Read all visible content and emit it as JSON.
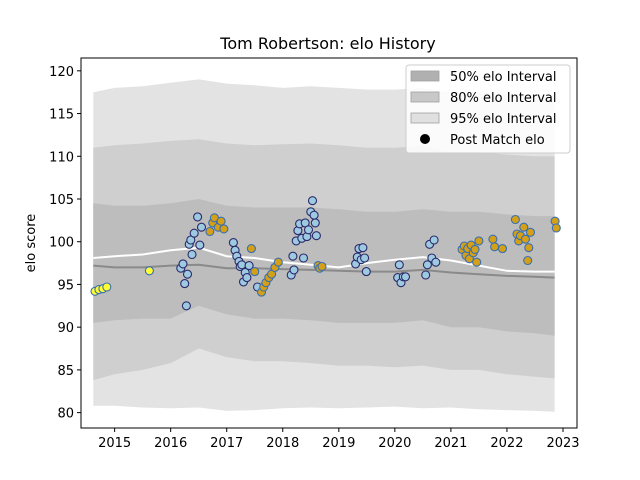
{
  "chart_data": {
    "type": "scatter",
    "title": "Tom Robertson: elo History",
    "xlabel": "",
    "ylabel": "elo score",
    "xlim": [
      2014.4,
      2023.25
    ],
    "ylim": [
      78.2,
      121.5
    ],
    "x_ticks": [
      2015,
      2016,
      2017,
      2018,
      2019,
      2020,
      2021,
      2022,
      2023
    ],
    "y_ticks": [
      80,
      85,
      90,
      95,
      100,
      105,
      110,
      115,
      120
    ],
    "grid": false,
    "legend_position": "top-right",
    "legend": [
      {
        "label": "50% elo Interval",
        "kind": "patch",
        "color": "#b0b0b0"
      },
      {
        "label": "80% elo Interval",
        "kind": "patch",
        "color": "#c8c8c8"
      },
      {
        "label": "95% elo Interval",
        "kind": "patch",
        "color": "#e0e0e0"
      },
      {
        "label": "Post Match elo",
        "kind": "marker",
        "color": "#000000"
      }
    ],
    "colors": {
      "band95": "#e3e3e3",
      "band80": "#cfcfcf",
      "band50": "#bdbdbd",
      "median_line": "#8a8a8a",
      "mean_line": "#ffffff",
      "point_blue_fill": "#9ecae1",
      "point_yellow_fill": "#ffff33",
      "point_gold_fill": "#d4a017",
      "point_edge_dark": "#2a2a6a",
      "point_edge_blue": "#3a6fb0"
    },
    "band_x": [
      2014.62,
      2015,
      2015.5,
      2016,
      2016.5,
      2017,
      2017.5,
      2018,
      2018.5,
      2019,
      2019.5,
      2020,
      2020.5,
      2021,
      2021.5,
      2022,
      2022.5,
      2022.85
    ],
    "band95_upper": [
      117.5,
      118,
      118.2,
      118.6,
      119,
      118.5,
      118.3,
      118,
      118.2,
      118,
      117.8,
      117.8,
      118,
      117.5,
      117.5,
      117.3,
      117.2,
      117
    ],
    "band95_lower": [
      80.8,
      80.8,
      80.6,
      80.5,
      80.6,
      80.2,
      80.3,
      80.5,
      80.6,
      80.5,
      80.6,
      80.7,
      80.5,
      80.6,
      80.4,
      80.3,
      80.2,
      80.1
    ],
    "band80_upper": [
      111,
      111.3,
      111.5,
      111.8,
      112,
      111.5,
      111.3,
      111.4,
      111.5,
      111.3,
      111,
      111,
      111.2,
      110.5,
      110.5,
      110.2,
      110,
      110
    ],
    "band80_lower": [
      83.8,
      84.5,
      85,
      85.8,
      87.5,
      86.5,
      86,
      86,
      85.8,
      85.5,
      85.5,
      85.3,
      85.5,
      85,
      85,
      84.5,
      84.2,
      84
    ],
    "band50_upper": [
      104.5,
      104.2,
      104.2,
      104.5,
      105,
      104.2,
      104,
      104,
      104,
      103.8,
      103.5,
      103.5,
      103.8,
      103.5,
      103.5,
      103.2,
      103,
      103
    ],
    "band50_lower": [
      90.5,
      90.8,
      91,
      91,
      92.5,
      91.5,
      91,
      91,
      90.8,
      90.5,
      90.5,
      90.5,
      90.8,
      90,
      90,
      89.5,
      89.3,
      89
    ],
    "median_line": [
      97.2,
      97,
      97,
      97.2,
      97.3,
      96.9,
      96.9,
      96.8,
      96.7,
      96.6,
      96.5,
      96.5,
      96.7,
      96.4,
      96.2,
      96,
      95.9,
      95.8
    ],
    "mean_line": [
      98.1,
      98.3,
      98.5,
      99,
      99.3,
      98.3,
      98.1,
      97.6,
      97.3,
      97,
      97.5,
      97.9,
      98.2,
      97.8,
      97.2,
      96.6,
      96.5,
      96.5
    ],
    "points": [
      {
        "x": 2014.65,
        "y": 94.2,
        "c": "yellow"
      },
      {
        "x": 2014.72,
        "y": 94.4,
        "c": "yellow"
      },
      {
        "x": 2014.79,
        "y": 94.5,
        "c": "yellow"
      },
      {
        "x": 2014.86,
        "y": 94.7,
        "c": "yellow"
      },
      {
        "x": 2015.62,
        "y": 96.6,
        "c": "yellow"
      },
      {
        "x": 2016.18,
        "y": 96.9,
        "c": "blue"
      },
      {
        "x": 2016.22,
        "y": 97.4,
        "c": "blue"
      },
      {
        "x": 2016.25,
        "y": 95.1,
        "c": "blue"
      },
      {
        "x": 2016.28,
        "y": 92.5,
        "c": "blue"
      },
      {
        "x": 2016.3,
        "y": 96.2,
        "c": "blue"
      },
      {
        "x": 2016.33,
        "y": 99.7,
        "c": "blue"
      },
      {
        "x": 2016.36,
        "y": 100.2,
        "c": "blue"
      },
      {
        "x": 2016.38,
        "y": 98.5,
        "c": "blue"
      },
      {
        "x": 2016.42,
        "y": 101,
        "c": "blue"
      },
      {
        "x": 2016.48,
        "y": 102.9,
        "c": "blue"
      },
      {
        "x": 2016.52,
        "y": 99.6,
        "c": "blue"
      },
      {
        "x": 2016.55,
        "y": 101.7,
        "c": "blue"
      },
      {
        "x": 2016.7,
        "y": 101.2,
        "c": "gold"
      },
      {
        "x": 2016.75,
        "y": 102.2,
        "c": "gold"
      },
      {
        "x": 2016.78,
        "y": 102.8,
        "c": "gold"
      },
      {
        "x": 2016.85,
        "y": 101.7,
        "c": "gold"
      },
      {
        "x": 2016.9,
        "y": 102.4,
        "c": "gold"
      },
      {
        "x": 2016.95,
        "y": 101.5,
        "c": "gold"
      },
      {
        "x": 2017.12,
        "y": 99.9,
        "c": "blue"
      },
      {
        "x": 2017.15,
        "y": 99,
        "c": "blue"
      },
      {
        "x": 2017.18,
        "y": 98.3,
        "c": "blue"
      },
      {
        "x": 2017.22,
        "y": 97.7,
        "c": "blue"
      },
      {
        "x": 2017.24,
        "y": 97.1,
        "c": "blue"
      },
      {
        "x": 2017.27,
        "y": 97.3,
        "c": "blue"
      },
      {
        "x": 2017.3,
        "y": 95.3,
        "c": "blue"
      },
      {
        "x": 2017.33,
        "y": 96.4,
        "c": "blue"
      },
      {
        "x": 2017.36,
        "y": 95.8,
        "c": "blue"
      },
      {
        "x": 2017.4,
        "y": 97.2,
        "c": "blue"
      },
      {
        "x": 2017.44,
        "y": 99.2,
        "c": "gold"
      },
      {
        "x": 2017.5,
        "y": 96.5,
        "c": "gold"
      },
      {
        "x": 2017.55,
        "y": 94.7,
        "c": "blue"
      },
      {
        "x": 2017.62,
        "y": 94.1,
        "c": "gold"
      },
      {
        "x": 2017.66,
        "y": 94.7,
        "c": "gold"
      },
      {
        "x": 2017.7,
        "y": 95.2,
        "c": "gold"
      },
      {
        "x": 2017.75,
        "y": 95.8,
        "c": "gold"
      },
      {
        "x": 2017.8,
        "y": 96.2,
        "c": "gold"
      },
      {
        "x": 2017.86,
        "y": 97,
        "c": "gold"
      },
      {
        "x": 2017.92,
        "y": 97.6,
        "c": "gold"
      },
      {
        "x": 2018.15,
        "y": 96.1,
        "c": "blue"
      },
      {
        "x": 2018.18,
        "y": 98.3,
        "c": "blue"
      },
      {
        "x": 2018.2,
        "y": 96.7,
        "c": "blue"
      },
      {
        "x": 2018.24,
        "y": 100.1,
        "c": "blue"
      },
      {
        "x": 2018.27,
        "y": 101.3,
        "c": "blue"
      },
      {
        "x": 2018.3,
        "y": 102.1,
        "c": "blue"
      },
      {
        "x": 2018.34,
        "y": 100.4,
        "c": "blue"
      },
      {
        "x": 2018.37,
        "y": 98.1,
        "c": "blue"
      },
      {
        "x": 2018.4,
        "y": 102.2,
        "c": "blue"
      },
      {
        "x": 2018.43,
        "y": 100.6,
        "c": "blue"
      },
      {
        "x": 2018.46,
        "y": 101.4,
        "c": "blue"
      },
      {
        "x": 2018.5,
        "y": 103.5,
        "c": "blue"
      },
      {
        "x": 2018.53,
        "y": 104.8,
        "c": "blue"
      },
      {
        "x": 2018.56,
        "y": 103.1,
        "c": "blue"
      },
      {
        "x": 2018.58,
        "y": 102.2,
        "c": "blue"
      },
      {
        "x": 2018.6,
        "y": 100.7,
        "c": "blue"
      },
      {
        "x": 2018.63,
        "y": 97.2,
        "c": "gold"
      },
      {
        "x": 2018.66,
        "y": 96.9,
        "c": "gold"
      },
      {
        "x": 2018.7,
        "y": 97.1,
        "c": "gold"
      },
      {
        "x": 2019.3,
        "y": 97.4,
        "c": "blue"
      },
      {
        "x": 2019.33,
        "y": 98.2,
        "c": "blue"
      },
      {
        "x": 2019.36,
        "y": 99.2,
        "c": "blue"
      },
      {
        "x": 2019.4,
        "y": 97.9,
        "c": "blue"
      },
      {
        "x": 2019.43,
        "y": 99.3,
        "c": "blue"
      },
      {
        "x": 2019.46,
        "y": 98.1,
        "c": "blue"
      },
      {
        "x": 2019.49,
        "y": 96.5,
        "c": "blue"
      },
      {
        "x": 2020.05,
        "y": 95.8,
        "c": "blue"
      },
      {
        "x": 2020.08,
        "y": 97.3,
        "c": "blue"
      },
      {
        "x": 2020.11,
        "y": 95.2,
        "c": "blue"
      },
      {
        "x": 2020.15,
        "y": 95.9,
        "c": "blue"
      },
      {
        "x": 2020.19,
        "y": 95.9,
        "c": "blue"
      },
      {
        "x": 2020.55,
        "y": 96.1,
        "c": "blue"
      },
      {
        "x": 2020.58,
        "y": 97.3,
        "c": "blue"
      },
      {
        "x": 2020.62,
        "y": 99.7,
        "c": "blue"
      },
      {
        "x": 2020.66,
        "y": 98.1,
        "c": "blue"
      },
      {
        "x": 2020.7,
        "y": 100.2,
        "c": "blue"
      },
      {
        "x": 2020.73,
        "y": 97.6,
        "c": "blue"
      },
      {
        "x": 2021.2,
        "y": 99.1,
        "c": "gold"
      },
      {
        "x": 2021.24,
        "y": 99.5,
        "c": "gold"
      },
      {
        "x": 2021.27,
        "y": 98.4,
        "c": "gold"
      },
      {
        "x": 2021.3,
        "y": 99.2,
        "c": "gold"
      },
      {
        "x": 2021.33,
        "y": 98,
        "c": "gold"
      },
      {
        "x": 2021.36,
        "y": 99.6,
        "c": "gold"
      },
      {
        "x": 2021.4,
        "y": 98.7,
        "c": "gold"
      },
      {
        "x": 2021.43,
        "y": 99.1,
        "c": "gold"
      },
      {
        "x": 2021.46,
        "y": 97.6,
        "c": "gold"
      },
      {
        "x": 2021.5,
        "y": 100.1,
        "c": "gold"
      },
      {
        "x": 2021.75,
        "y": 100.3,
        "c": "gold"
      },
      {
        "x": 2021.78,
        "y": 99.4,
        "c": "gold"
      },
      {
        "x": 2021.92,
        "y": 99.2,
        "c": "gold"
      },
      {
        "x": 2022.15,
        "y": 102.6,
        "c": "gold"
      },
      {
        "x": 2022.18,
        "y": 100.9,
        "c": "gold"
      },
      {
        "x": 2022.21,
        "y": 100.1,
        "c": "gold"
      },
      {
        "x": 2022.24,
        "y": 100.7,
        "c": "gold"
      },
      {
        "x": 2022.3,
        "y": 101.7,
        "c": "gold"
      },
      {
        "x": 2022.33,
        "y": 100.3,
        "c": "gold"
      },
      {
        "x": 2022.37,
        "y": 97.8,
        "c": "gold"
      },
      {
        "x": 2022.39,
        "y": 99.3,
        "c": "gold"
      },
      {
        "x": 2022.42,
        "y": 101.1,
        "c": "gold"
      },
      {
        "x": 2022.86,
        "y": 102.4,
        "c": "gold"
      },
      {
        "x": 2022.88,
        "y": 101.6,
        "c": "gold"
      }
    ]
  }
}
